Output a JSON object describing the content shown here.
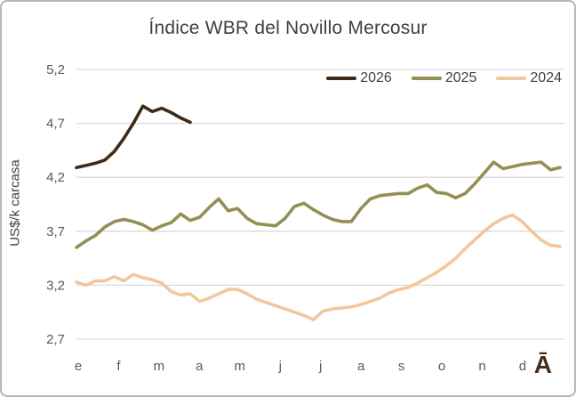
{
  "branding": {
    "mark": "Ā"
  },
  "chart_data": {
    "type": "line",
    "title": "Índice WBR del Novillo Mercosur",
    "xlabel": "",
    "ylabel": "US$/k carcasa",
    "ylim": [
      2.7,
      5.2
    ],
    "y_ticks": [
      "5,2",
      "4,7",
      "4,2",
      "3,7",
      "3,2",
      "2,7"
    ],
    "y_tick_values": [
      5.2,
      4.7,
      4.2,
      3.7,
      3.2,
      2.7
    ],
    "x_tick_labels": [
      "e",
      "f",
      "m",
      "a",
      "m",
      "j",
      "j",
      "a",
      "s",
      "o",
      "n",
      "d"
    ],
    "x_resolution": "weekly",
    "grid": "horizontal",
    "gridline_color": "#d9d9d9",
    "legend_position": "top-right",
    "series": [
      {
        "name": "2026",
        "color": "#3f2a17",
        "values": [
          4.29,
          4.31,
          4.33,
          4.36,
          4.44,
          4.56,
          4.7,
          4.86,
          4.81,
          4.84,
          4.8,
          4.75,
          4.71
        ]
      },
      {
        "name": "2025",
        "color": "#948f55",
        "values": [
          3.55,
          3.61,
          3.66,
          3.74,
          3.79,
          3.81,
          3.79,
          3.76,
          3.71,
          3.75,
          3.78,
          3.86,
          3.8,
          3.83,
          3.92,
          4.0,
          3.89,
          3.91,
          3.82,
          3.77,
          3.76,
          3.75,
          3.82,
          3.93,
          3.96,
          3.9,
          3.85,
          3.81,
          3.79,
          3.79,
          3.91,
          4.0,
          4.03,
          4.04,
          4.05,
          4.05,
          4.1,
          4.13,
          4.06,
          4.05,
          4.01,
          4.05,
          4.14,
          4.24,
          4.34,
          4.28,
          4.3,
          4.32,
          4.33,
          4.34,
          4.27,
          4.29
        ]
      },
      {
        "name": "2024",
        "color": "#f2c79c",
        "values": [
          3.23,
          3.2,
          3.24,
          3.24,
          3.28,
          3.24,
          3.3,
          3.27,
          3.25,
          3.22,
          3.14,
          3.11,
          3.12,
          3.05,
          3.08,
          3.12,
          3.16,
          3.16,
          3.12,
          3.07,
          3.04,
          3.01,
          2.98,
          2.95,
          2.92,
          2.88,
          2.96,
          2.98,
          2.99,
          3.0,
          3.02,
          3.05,
          3.08,
          3.13,
          3.16,
          3.18,
          3.22,
          3.27,
          3.32,
          3.38,
          3.45,
          3.54,
          3.62,
          3.7,
          3.77,
          3.82,
          3.85,
          3.79,
          3.7,
          3.62,
          3.57,
          3.56
        ]
      }
    ]
  }
}
